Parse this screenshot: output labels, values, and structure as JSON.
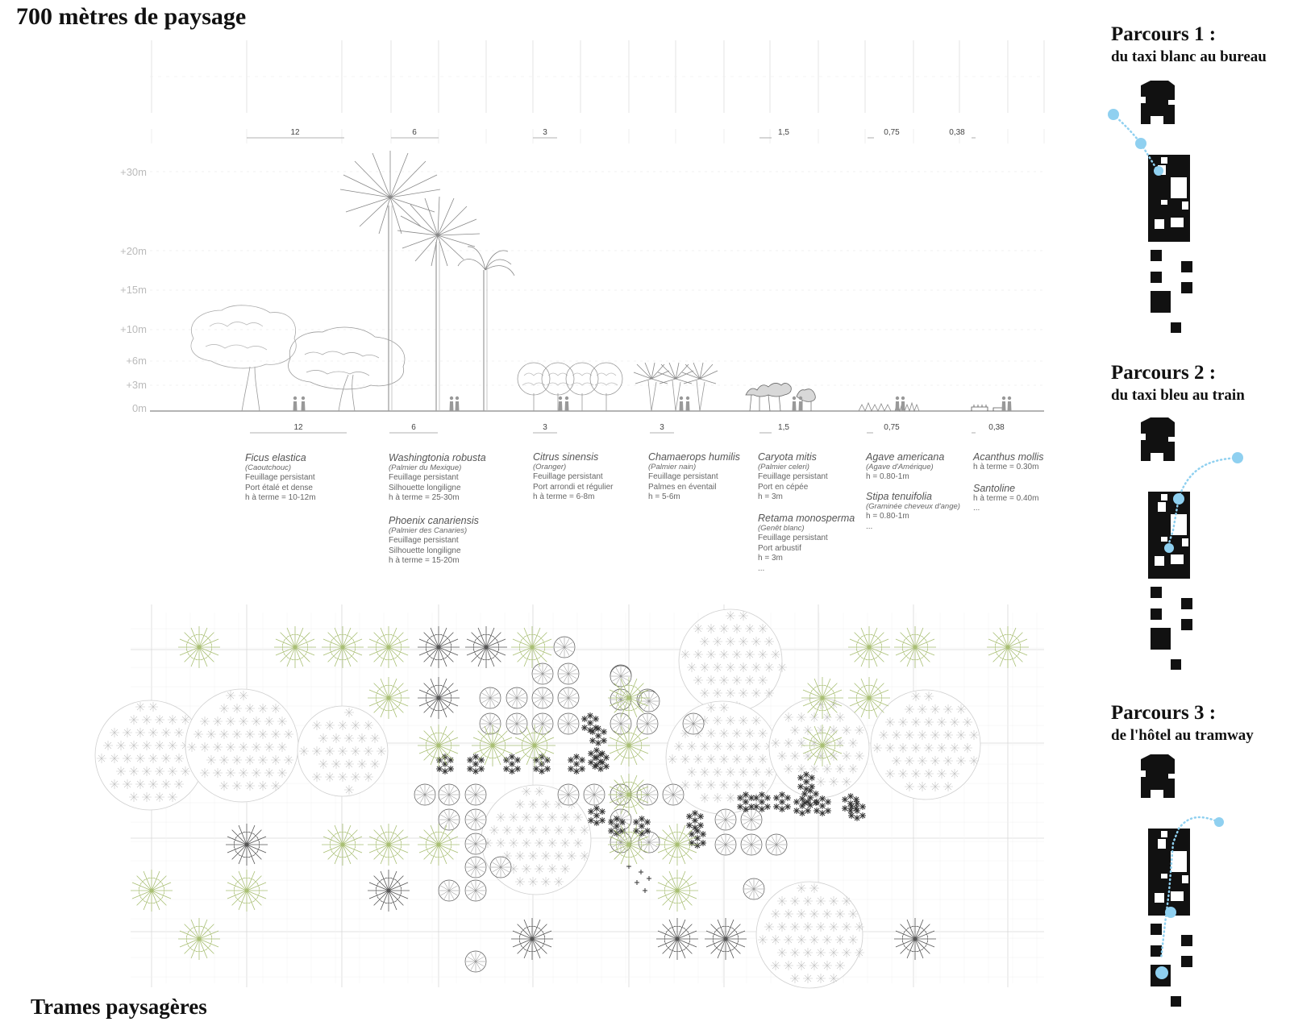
{
  "title": "700 mètres de paysage",
  "plan_title": "Trames paysagères",
  "colors": {
    "route_dot": "#8fd0f0",
    "palm_green": "#a9bf74",
    "block": "#111111",
    "line": "#bdbdbd"
  },
  "height_axis": [
    "+30m",
    "+20m",
    "+15m",
    "+10m",
    "+6m",
    "+3m",
    "0m"
  ],
  "top_spacings": [
    "12",
    "6",
    "3",
    "1,5",
    "0,75",
    "0,38"
  ],
  "bottom_spacings": [
    "12",
    "6",
    "3",
    "3",
    "1,5",
    "0,75",
    "0,38"
  ],
  "species": [
    {
      "name": "Ficus elastica",
      "common": "(Caoutchouc)",
      "lines": [
        "Feuillage persistant",
        "Port étalé et dense",
        "h à terme = 10-12m"
      ]
    },
    {
      "name": "Washingtonia robusta",
      "common": "(Palmier du Mexique)",
      "lines": [
        "Feuillage persistant",
        "Silhouette longiligne",
        "h à terme = 25-30m"
      ]
    },
    {
      "name": "Phoenix canariensis",
      "common": "(Palmier des Canaries)",
      "lines": [
        "Feuillage persistant",
        "Silhouette longiligne",
        "h à terme = 15-20m"
      ]
    },
    {
      "name": "Citrus sinensis",
      "common": "(Oranger)",
      "lines": [
        "Feuillage persistant",
        "Port arrondi et régulier",
        "h à terme = 6-8m"
      ]
    },
    {
      "name": "Chamaerops humilis",
      "common": "(Palmier nain)",
      "lines": [
        "Feuillage persistant",
        "Palmes en éventail",
        "h = 5-6m"
      ]
    },
    {
      "name": "Caryota mitis",
      "common": "(Palmier celeri)",
      "lines": [
        "Feuillage persistant",
        "Port en cépée",
        "h = 3m"
      ]
    },
    {
      "name": "Retama monosperma",
      "common": "(Genêt blanc)",
      "lines": [
        "Feuillage persistant",
        "Port arbustif",
        "h = 3m",
        "..."
      ]
    },
    {
      "name": "Agave americana",
      "common": "(Agave d'Amérique)",
      "lines": [
        "h = 0.80-1m"
      ]
    },
    {
      "name": "Stipa tenuifolia",
      "common": "(Graminée cheveux d'ange)",
      "lines": [
        "h = 0.80-1m",
        "..."
      ]
    },
    {
      "name": "Acanthus mollis",
      "common": "",
      "lines": [
        "h à terme = 0.30m"
      ]
    },
    {
      "name": "Santoline",
      "common": "",
      "lines": [
        "h à terme = 0.40m",
        "..."
      ]
    }
  ],
  "routes": [
    {
      "title": "Parcours 1 :",
      "subtitle": "du taxi blanc au bureau"
    },
    {
      "title": "Parcours 2 :",
      "subtitle": "du taxi bleu au train"
    },
    {
      "title": "Parcours 3 :",
      "subtitle": "de l'hôtel au tramway"
    }
  ]
}
